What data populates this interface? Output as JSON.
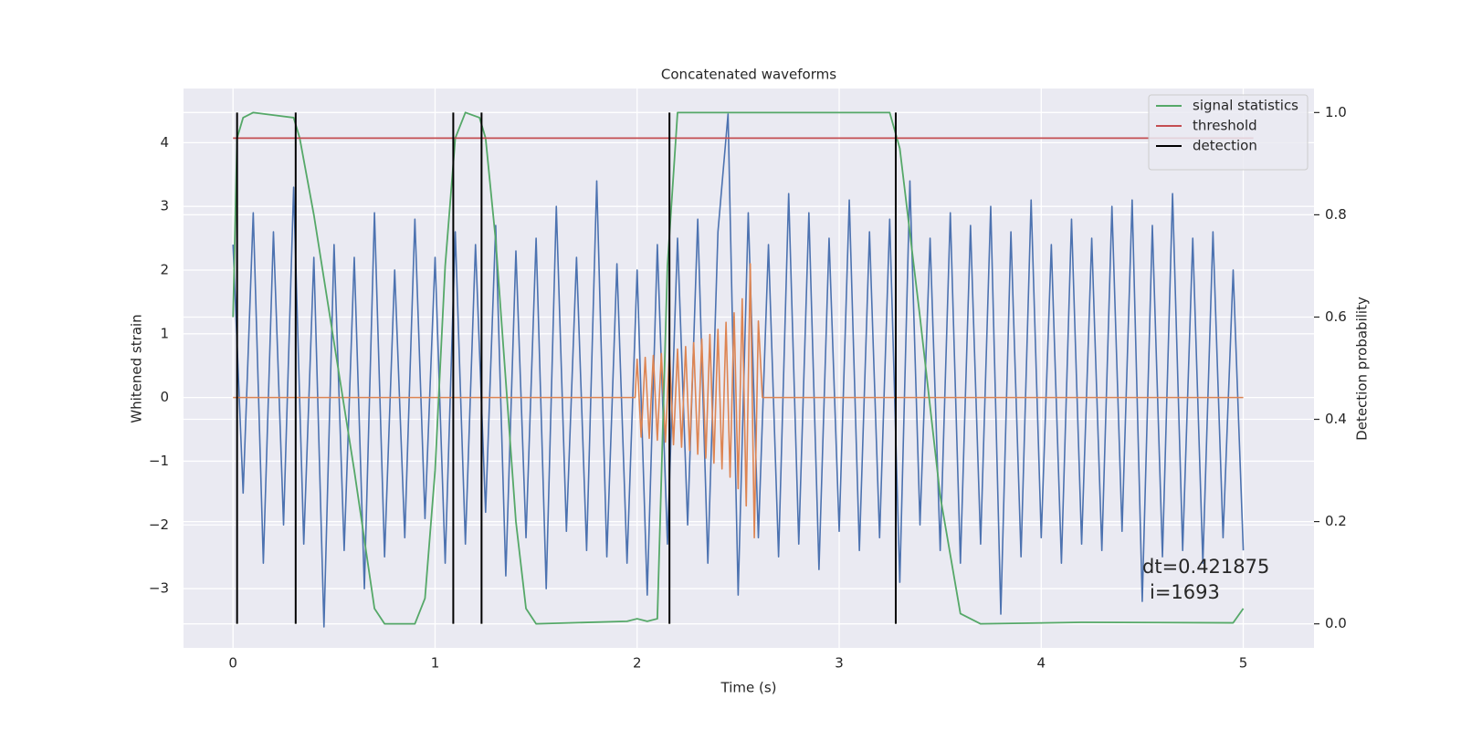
{
  "chart_data": {
    "type": "line",
    "title": "Concatenated waveforms",
    "xlabel": "Time (s)",
    "ylabel": "Whitened strain",
    "y2label": "Detection probability",
    "annotations": [
      "dt=0.421875",
      "i=1693"
    ],
    "xlim": [
      -0.245,
      5.35
    ],
    "ylim": [
      -3.93,
      4.85
    ],
    "y2lim": [
      -0.047,
      1.047
    ],
    "xticks": [
      0,
      1,
      2,
      3,
      4,
      5
    ],
    "yticks": [
      {
        "value": -3,
        "label": "−3"
      },
      {
        "value": -2,
        "label": "−2"
      },
      {
        "value": -1,
        "label": "−1"
      },
      0,
      1,
      2,
      3,
      4
    ],
    "y2ticks": [
      {
        "value": 0,
        "label": "0.0"
      },
      {
        "value": 0.2,
        "label": "0.2"
      },
      {
        "value": 0.4,
        "label": "0.4"
      },
      {
        "value": 0.6,
        "label": "0.6"
      },
      {
        "value": 0.8,
        "label": "0.8"
      },
      {
        "value": 1,
        "label": "1.0"
      }
    ],
    "grid": true,
    "legend": "upper right",
    "series": [
      {
        "color": "#4c72b0",
        "x": [
          0,
          0.05,
          0.1,
          0.15,
          0.2,
          0.25,
          0.3,
          0.35,
          0.4,
          0.45,
          0.5,
          0.55,
          0.6,
          0.65,
          0.7,
          0.75,
          0.8,
          0.85,
          0.9,
          0.95,
          1,
          1.05,
          1.1,
          1.15,
          1.2,
          1.25,
          1.3,
          1.35,
          1.4,
          1.45,
          1.5,
          1.55,
          1.6,
          1.65,
          1.7,
          1.75,
          1.8,
          1.85,
          1.9,
          1.95,
          2,
          2.05,
          2.1,
          2.15,
          2.2,
          2.25,
          2.3,
          2.35,
          2.4,
          2.45,
          2.5,
          2.55,
          2.6,
          2.65,
          2.7,
          2.75,
          2.8,
          2.85,
          2.9,
          2.95,
          3,
          3.05,
          3.1,
          3.15,
          3.2,
          3.25,
          3.3,
          3.35,
          3.4,
          3.45,
          3.5,
          3.55,
          3.6,
          3.65,
          3.7,
          3.75,
          3.8,
          3.85,
          3.9,
          3.95,
          4,
          4.05,
          4.1,
          4.15,
          4.2,
          4.25,
          4.3,
          4.35,
          4.4,
          4.45,
          4.5,
          4.55,
          4.6,
          4.65,
          4.7,
          4.75,
          4.8,
          4.85,
          4.9,
          4.95,
          5
        ],
        "values": [
          2.4,
          -1.5,
          2.9,
          -2.6,
          2.6,
          -2.0,
          3.3,
          -2.3,
          2.2,
          -3.6,
          2.4,
          -2.4,
          2.2,
          -3.0,
          2.9,
          -2.5,
          2.0,
          -2.2,
          2.8,
          -1.9,
          2.2,
          -2.6,
          2.6,
          -2.3,
          2.4,
          -1.8,
          2.7,
          -2.8,
          2.3,
          -2.2,
          2.5,
          -3.0,
          3.0,
          -2.1,
          2.2,
          -2.4,
          3.4,
          -2.5,
          2.1,
          -2.6,
          2.0,
          -3.1,
          2.4,
          -2.3,
          2.5,
          -2.0,
          2.8,
          -2.6,
          2.6,
          4.45,
          -3.1,
          2.9,
          -2.2,
          2.4,
          -2.5,
          3.2,
          -2.3,
          2.9,
          -2.7,
          2.5,
          -2.1,
          3.1,
          -2.4,
          2.6,
          -2.2,
          2.8,
          -2.9,
          3.4,
          -2.0,
          2.5,
          -2.4,
          2.9,
          -2.6,
          2.7,
          -2.3,
          3.0,
          -3.4,
          2.6,
          -2.5,
          3.1,
          -2.2,
          2.4,
          -2.6,
          2.8,
          -2.3,
          2.5,
          -2.4,
          3.0,
          -2.1,
          3.1,
          -3.2,
          2.7,
          -2.5,
          3.2,
          -2.4,
          2.5,
          -2.6,
          2.6,
          -2.2,
          2.0,
          -2.4
        ]
      },
      {
        "color": "#dd8452",
        "x": [
          0,
          1.99,
          2,
          2.02,
          2.04,
          2.06,
          2.08,
          2.1,
          2.12,
          2.14,
          2.16,
          2.18,
          2.2,
          2.22,
          2.24,
          2.26,
          2.28,
          2.3,
          2.32,
          2.34,
          2.36,
          2.38,
          2.4,
          2.42,
          2.44,
          2.46,
          2.48,
          2.5,
          2.52,
          2.54,
          2.56,
          2.58,
          2.6,
          2.62,
          5
        ],
        "values": [
          0,
          0,
          0.6,
          -0.62,
          0.63,
          -0.64,
          0.66,
          -0.67,
          0.69,
          -0.7,
          0.72,
          -0.74,
          0.76,
          -0.78,
          0.8,
          -0.83,
          0.86,
          -0.89,
          0.92,
          -0.95,
          0.99,
          -1.03,
          1.07,
          -1.12,
          1.18,
          -1.25,
          1.33,
          -1.43,
          1.55,
          -1.7,
          2.1,
          -2.2,
          1.2,
          0,
          0
        ]
      },
      {
        "name": "signal statistics",
        "color": "#55a868",
        "axis": "y2",
        "x": [
          0,
          0.02,
          0.05,
          0.1,
          0.3,
          0.33,
          0.4,
          0.5,
          0.6,
          0.7,
          0.75,
          0.9,
          0.95,
          1,
          1.05,
          1.1,
          1.15,
          1.22,
          1.25,
          1.3,
          1.4,
          1.45,
          1.5,
          1.95,
          2,
          2.05,
          2.1,
          2.15,
          2.2,
          3.25,
          3.3,
          3.4,
          3.5,
          3.6,
          3.7,
          4.2,
          4.95,
          5
        ],
        "values": [
          0.6,
          0.95,
          0.99,
          1,
          0.99,
          0.95,
          0.8,
          0.55,
          0.3,
          0.03,
          0,
          0,
          0.05,
          0.3,
          0.7,
          0.95,
          1,
          0.99,
          0.95,
          0.75,
          0.2,
          0.03,
          0,
          0.005,
          0.01,
          0.005,
          0.01,
          0.7,
          1,
          1,
          0.93,
          0.6,
          0.25,
          0.02,
          0,
          0.003,
          0.002,
          0.03
        ]
      },
      {
        "name": "threshold",
        "color": "#c44e52",
        "axis": "y2",
        "x": [
          0,
          5.05
        ],
        "values": [
          0.95,
          0.95
        ]
      },
      {
        "name": "detection",
        "color": "#000000",
        "axis": "y2",
        "style": "vline",
        "x": [
          0.02,
          0.31,
          1.09,
          1.23,
          2.16,
          3.28
        ],
        "values": [
          1,
          1,
          1,
          1,
          1,
          1
        ]
      }
    ]
  }
}
